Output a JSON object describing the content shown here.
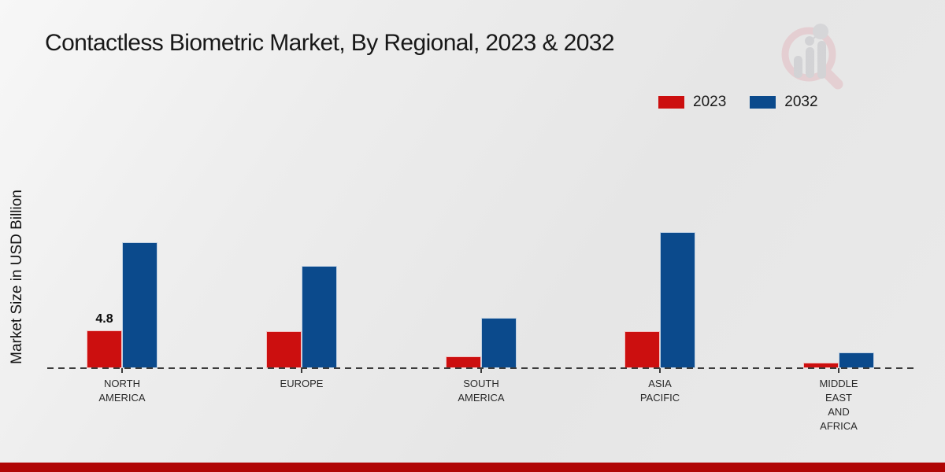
{
  "page": {
    "title": "Contactless Biometric Market, By Regional, 2023 & 2032",
    "ylabel": "Market Size in USD Billion",
    "background_color": "#eaeaea",
    "footer_band_color": "#b00505"
  },
  "legend": {
    "items": [
      {
        "label": "2023",
        "color": "#cc0f0f"
      },
      {
        "label": "2032",
        "color": "#0b4a8c"
      }
    ]
  },
  "watermark": {
    "name": "market-research-chart-magnifier-logo",
    "ring_color": "#e3bcc1",
    "bar_color": "#c3c3c8"
  },
  "chart_data": {
    "type": "bar",
    "title": "Contactless Biometric Market, By Regional, 2023 & 2032",
    "xlabel": "",
    "ylabel": "Market Size in USD Billion",
    "categories": [
      "NORTH AMERICA",
      "EUROPE",
      "SOUTH AMERICA",
      "ASIA PACIFIC",
      "MIDDLE EAST AND AFRICA"
    ],
    "category_lines": [
      [
        "NORTH",
        "AMERICA"
      ],
      [
        "EUROPE"
      ],
      [
        "SOUTH",
        "AMERICA"
      ],
      [
        "ASIA",
        "PACIFIC"
      ],
      [
        "MIDDLE",
        "EAST",
        "AND",
        "AFRICA"
      ]
    ],
    "series": [
      {
        "name": "2023",
        "color": "#cc0f0f",
        "values": [
          4.8,
          4.7,
          1.5,
          4.7,
          0.7
        ],
        "labels": [
          "4.8",
          "",
          "",
          "",
          ""
        ]
      },
      {
        "name": "2032",
        "color": "#0b4a8c",
        "values": [
          16.0,
          13.0,
          6.4,
          17.3,
          2.0
        ],
        "labels": [
          "",
          "",
          "",
          "",
          ""
        ]
      }
    ],
    "ylim": [
      0,
      20
    ],
    "grid": false,
    "legend_position": "top-right",
    "baseline_style": "dashed"
  }
}
